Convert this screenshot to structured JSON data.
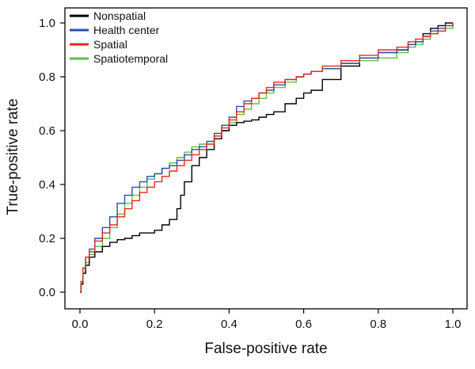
{
  "chart_data": {
    "type": "line",
    "title": "",
    "xlabel": "False-positive rate",
    "ylabel": "True-positive rate",
    "xlim": [
      0,
      1
    ],
    "ylim": [
      0,
      1
    ],
    "xticks": [
      "0.0",
      "0.2",
      "0.4",
      "0.6",
      "0.8",
      "1.0"
    ],
    "yticks": [
      "0.0",
      "0.2",
      "0.4",
      "0.6",
      "0.8",
      "1.0"
    ],
    "grid": false,
    "legend_position": "top-left",
    "series": [
      {
        "name": "Nonspatial",
        "color": "#000000",
        "x": [
          0,
          0.003,
          0.008,
          0.015,
          0.025,
          0.04,
          0.06,
          0.08,
          0.1,
          0.12,
          0.14,
          0.16,
          0.18,
          0.2,
          0.22,
          0.24,
          0.26,
          0.27,
          0.28,
          0.3,
          0.32,
          0.34,
          0.36,
          0.38,
          0.4,
          0.42,
          0.44,
          0.46,
          0.48,
          0.5,
          0.52,
          0.55,
          0.58,
          0.6,
          0.62,
          0.65,
          0.7,
          0.75,
          0.8,
          0.85,
          0.88,
          0.9,
          0.92,
          0.94,
          0.96,
          0.98,
          1.0
        ],
        "y": [
          0,
          0.03,
          0.07,
          0.1,
          0.13,
          0.15,
          0.17,
          0.185,
          0.195,
          0.2,
          0.21,
          0.22,
          0.22,
          0.23,
          0.25,
          0.27,
          0.31,
          0.36,
          0.41,
          0.47,
          0.5,
          0.53,
          0.57,
          0.6,
          0.62,
          0.63,
          0.635,
          0.64,
          0.65,
          0.66,
          0.67,
          0.7,
          0.72,
          0.74,
          0.75,
          0.79,
          0.84,
          0.87,
          0.89,
          0.9,
          0.92,
          0.93,
          0.96,
          0.98,
          0.99,
          1.0,
          1.0
        ]
      },
      {
        "name": "Health center",
        "color": "#2b4fa8",
        "x": [
          0,
          0.003,
          0.008,
          0.015,
          0.025,
          0.04,
          0.06,
          0.08,
          0.1,
          0.12,
          0.14,
          0.16,
          0.18,
          0.2,
          0.22,
          0.24,
          0.26,
          0.28,
          0.3,
          0.32,
          0.34,
          0.36,
          0.38,
          0.4,
          0.42,
          0.44,
          0.46,
          0.48,
          0.5,
          0.52,
          0.55,
          0.58,
          0.6,
          0.62,
          0.65,
          0.7,
          0.75,
          0.8,
          0.85,
          0.88,
          0.9,
          0.92,
          0.94,
          0.96,
          0.98,
          1.0
        ],
        "y": [
          0,
          0.04,
          0.09,
          0.13,
          0.16,
          0.2,
          0.24,
          0.28,
          0.33,
          0.36,
          0.39,
          0.41,
          0.43,
          0.44,
          0.46,
          0.47,
          0.49,
          0.51,
          0.53,
          0.54,
          0.56,
          0.59,
          0.62,
          0.65,
          0.69,
          0.71,
          0.72,
          0.74,
          0.75,
          0.77,
          0.79,
          0.8,
          0.81,
          0.82,
          0.83,
          0.85,
          0.87,
          0.89,
          0.9,
          0.92,
          0.93,
          0.95,
          0.97,
          0.98,
          0.99,
          1.0
        ]
      },
      {
        "name": "Spatial",
        "color": "#e8281e",
        "x": [
          0,
          0.003,
          0.008,
          0.015,
          0.025,
          0.04,
          0.06,
          0.08,
          0.1,
          0.12,
          0.14,
          0.16,
          0.18,
          0.2,
          0.22,
          0.24,
          0.26,
          0.28,
          0.3,
          0.32,
          0.34,
          0.36,
          0.38,
          0.4,
          0.42,
          0.44,
          0.46,
          0.48,
          0.5,
          0.52,
          0.55,
          0.58,
          0.6,
          0.62,
          0.65,
          0.7,
          0.75,
          0.8,
          0.85,
          0.88,
          0.9,
          0.92,
          0.94,
          0.96,
          0.98,
          1.0
        ],
        "y": [
          0,
          0.04,
          0.09,
          0.13,
          0.15,
          0.19,
          0.22,
          0.25,
          0.28,
          0.31,
          0.34,
          0.37,
          0.39,
          0.41,
          0.43,
          0.45,
          0.47,
          0.49,
          0.51,
          0.53,
          0.55,
          0.58,
          0.61,
          0.64,
          0.67,
          0.7,
          0.72,
          0.74,
          0.76,
          0.78,
          0.79,
          0.8,
          0.81,
          0.82,
          0.84,
          0.86,
          0.88,
          0.9,
          0.91,
          0.93,
          0.94,
          0.95,
          0.96,
          0.97,
          0.99,
          1.0
        ]
      },
      {
        "name": "Spatiotemporal",
        "color": "#5cbf45",
        "x": [
          0,
          0.003,
          0.008,
          0.015,
          0.025,
          0.04,
          0.06,
          0.08,
          0.1,
          0.12,
          0.14,
          0.16,
          0.18,
          0.2,
          0.22,
          0.24,
          0.26,
          0.28,
          0.3,
          0.32,
          0.34,
          0.36,
          0.38,
          0.4,
          0.42,
          0.44,
          0.46,
          0.48,
          0.5,
          0.52,
          0.55,
          0.58,
          0.6,
          0.62,
          0.65,
          0.7,
          0.75,
          0.8,
          0.85,
          0.88,
          0.9,
          0.92,
          0.94,
          0.96,
          0.98,
          1.0
        ],
        "y": [
          0,
          0.03,
          0.07,
          0.11,
          0.14,
          0.17,
          0.2,
          0.24,
          0.29,
          0.33,
          0.36,
          0.39,
          0.42,
          0.44,
          0.46,
          0.48,
          0.5,
          0.52,
          0.54,
          0.55,
          0.56,
          0.58,
          0.6,
          0.63,
          0.66,
          0.68,
          0.7,
          0.72,
          0.74,
          0.76,
          0.78,
          0.8,
          0.81,
          0.82,
          0.83,
          0.85,
          0.86,
          0.87,
          0.89,
          0.91,
          0.92,
          0.94,
          0.96,
          0.97,
          0.98,
          1.0
        ]
      }
    ]
  }
}
